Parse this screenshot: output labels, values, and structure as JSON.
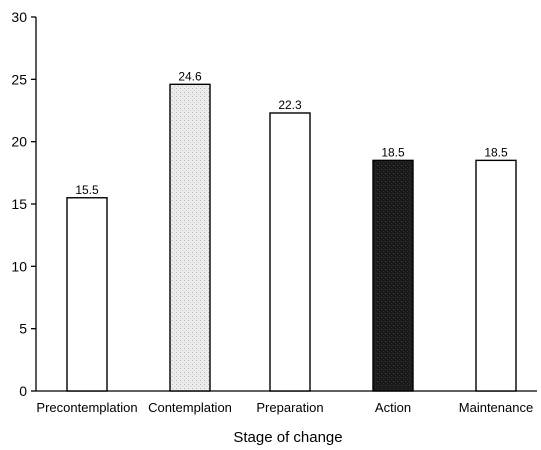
{
  "chart_data": {
    "type": "bar",
    "xlabel": "Stage of change",
    "ylabel": "",
    "ylim": [
      0,
      30
    ],
    "yticks": [
      "0",
      "5",
      "10",
      "15",
      "20",
      "25",
      "30"
    ],
    "categories": [
      "Precontemplation",
      "Contemplation",
      "Preparation",
      "Action",
      "Maintenance"
    ],
    "values": [
      15.5,
      24.6,
      22.3,
      18.5,
      18.5
    ],
    "value_labels": [
      "15.5",
      "24.6",
      "22.3",
      "18.5",
      "18.5"
    ],
    "bar_fills": [
      "#ffffff",
      "#e4e4e4",
      "#ffffff",
      "#1c1c1c",
      "#ffffff"
    ],
    "grid": false,
    "legend": "none"
  }
}
